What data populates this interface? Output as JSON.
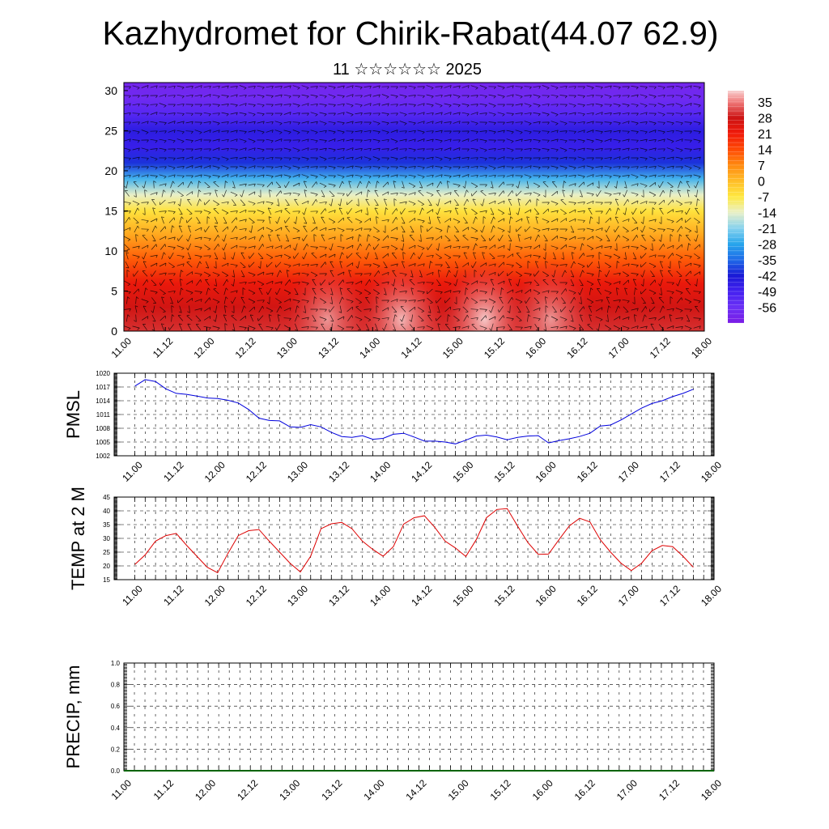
{
  "title": "Kazhydromet for Chirik-Rabat(44.07 62.9)",
  "subtitle": "11 ☆☆☆☆☆☆ 2025",
  "time_labels": [
    "11.00",
    "11.12",
    "12.00",
    "12.12",
    "13.00",
    "13.12",
    "14.00",
    "14.12",
    "15.00",
    "15.12",
    "16.00",
    "16.12",
    "17.00",
    "17.12",
    "18.00"
  ],
  "chart_data": [
    {
      "type": "heatmap",
      "name": "upper-air temperature and wind cross-section",
      "x": [
        "11.00",
        "11.12",
        "12.00",
        "12.12",
        "13.00",
        "13.12",
        "14.00",
        "14.12",
        "15.00",
        "15.12",
        "16.00",
        "16.12",
        "17.00",
        "17.12",
        "18.00"
      ],
      "y_ticks": [
        0,
        5,
        10,
        15,
        20,
        25,
        30
      ],
      "ylim": [
        0,
        31
      ],
      "colorbar_labels": [
        "35",
        "28",
        "21",
        "14",
        "7",
        "0",
        "-7",
        "-14",
        "-21",
        "-28",
        "-35",
        "-42",
        "-49",
        "-56"
      ],
      "colorbar_range": [
        -63,
        40
      ],
      "colorbar_stops": [
        {
          "value": -63,
          "color": "#7a1ce6"
        },
        {
          "value": -56,
          "color": "#6b30f5"
        },
        {
          "value": -49,
          "color": "#4420f0"
        },
        {
          "value": -42,
          "color": "#1a1ad6"
        },
        {
          "value": -35,
          "color": "#1f6ae8"
        },
        {
          "value": -28,
          "color": "#27a5ec"
        },
        {
          "value": -21,
          "color": "#86d2ee"
        },
        {
          "value": -14,
          "color": "#e9f0c8"
        },
        {
          "value": -7,
          "color": "#ffe840"
        },
        {
          "value": 0,
          "color": "#ffbd28"
        },
        {
          "value": 7,
          "color": "#ff8a10"
        },
        {
          "value": 14,
          "color": "#ff4a05"
        },
        {
          "value": 21,
          "color": "#f01a0a"
        },
        {
          "value": 28,
          "color": "#cc1414"
        },
        {
          "value": 35,
          "color": "#f07a7a"
        },
        {
          "value": 40,
          "color": "#f8d0d0"
        }
      ],
      "wind_barbs": true
    },
    {
      "type": "line",
      "ylabel": "PMSL",
      "y_ticks": [
        1002,
        1005,
        1008,
        1011,
        1014,
        1017,
        1020
      ],
      "ylim": [
        1002,
        1020
      ],
      "xlim": [
        -0.5,
        14
      ],
      "grid": true,
      "color": "#0000dd",
      "x": [
        0,
        0.25,
        0.5,
        0.75,
        1,
        1.25,
        1.5,
        1.75,
        2,
        2.25,
        2.5,
        2.75,
        3,
        3.25,
        3.5,
        3.75,
        4,
        4.25,
        4.5,
        4.75,
        5,
        5.25,
        5.5,
        5.75,
        6,
        6.25,
        6.5,
        6.75,
        7,
        7.25,
        7.5,
        7.75,
        8,
        8.25,
        8.5,
        8.75,
        9,
        9.25,
        9.5,
        9.75,
        10,
        10.25,
        10.5,
        10.75,
        11,
        11.25,
        11.5,
        11.75,
        12,
        12.25,
        12.5,
        12.75,
        13,
        13.25,
        13.5
      ],
      "values": [
        1017.2,
        1018.6,
        1018.2,
        1016.6,
        1015.6,
        1015.4,
        1015.0,
        1014.6,
        1014.5,
        1014.1,
        1013.5,
        1012.1,
        1010.2,
        1009.7,
        1009.6,
        1008.3,
        1008.2,
        1008.8,
        1008.3,
        1007.1,
        1006.2,
        1006.0,
        1006.4,
        1005.6,
        1005.8,
        1006.7,
        1006.9,
        1006.1,
        1005.2,
        1005.2,
        1005.0,
        1004.6,
        1005.4,
        1006.3,
        1006.5,
        1006.1,
        1005.5,
        1006.0,
        1006.3,
        1006.4,
        1004.8,
        1005.3,
        1005.7,
        1006.2,
        1006.9,
        1008.5,
        1008.7,
        1009.8,
        1011.1,
        1012.4,
        1013.4,
        1014.0,
        1014.9,
        1015.6,
        1016.5
      ]
    },
    {
      "type": "line",
      "ylabel": "TEMP at 2 M",
      "y_ticks": [
        15,
        20,
        25,
        30,
        35,
        40,
        45
      ],
      "ylim": [
        15,
        45
      ],
      "xlim": [
        -0.5,
        14
      ],
      "grid": true,
      "color": "#dd0000",
      "x": [
        0,
        0.25,
        0.5,
        0.75,
        1,
        1.25,
        1.5,
        1.75,
        2,
        2.25,
        2.5,
        2.75,
        3,
        3.25,
        3.5,
        3.75,
        4,
        4.25,
        4.5,
        4.75,
        5,
        5.25,
        5.5,
        5.75,
        6,
        6.25,
        6.5,
        6.75,
        7,
        7.25,
        7.5,
        7.75,
        8,
        8.25,
        8.5,
        8.75,
        9,
        9.25,
        9.5,
        9.75,
        10,
        10.25,
        10.5,
        10.75,
        11,
        11.25,
        11.5,
        11.75,
        12,
        12.25,
        12.5,
        12.75,
        13,
        13.25,
        13.5
      ],
      "values": [
        20.5,
        24.0,
        29.0,
        31.0,
        31.8,
        27.5,
        23.5,
        19.5,
        17.5,
        24.5,
        31.0,
        32.8,
        33.2,
        29.0,
        25.0,
        21.0,
        17.8,
        23.5,
        33.5,
        35.3,
        35.8,
        33.5,
        29.0,
        26.0,
        23.5,
        27.0,
        35.2,
        37.5,
        38.2,
        34.0,
        29.0,
        26.5,
        23.4,
        29.5,
        37.5,
        40.5,
        40.8,
        34.5,
        28.5,
        24.2,
        24.3,
        29.5,
        34.5,
        37.3,
        36.0,
        29.5,
        25.0,
        21.0,
        18.3,
        21.0,
        25.5,
        27.4,
        27.0,
        23.5,
        19.5
      ]
    },
    {
      "type": "line",
      "ylabel": "PRECIP, mm",
      "y_ticks": [
        "0.0",
        "0.2",
        "0.4",
        "0.6",
        "0.8",
        "1.0"
      ],
      "ylim": [
        0,
        1
      ],
      "xlim": [
        0,
        14
      ],
      "grid": true,
      "color": "#006400",
      "values": [
        0,
        0,
        0,
        0,
        0,
        0,
        0,
        0,
        0,
        0,
        0,
        0,
        0,
        0,
        0
      ]
    }
  ]
}
